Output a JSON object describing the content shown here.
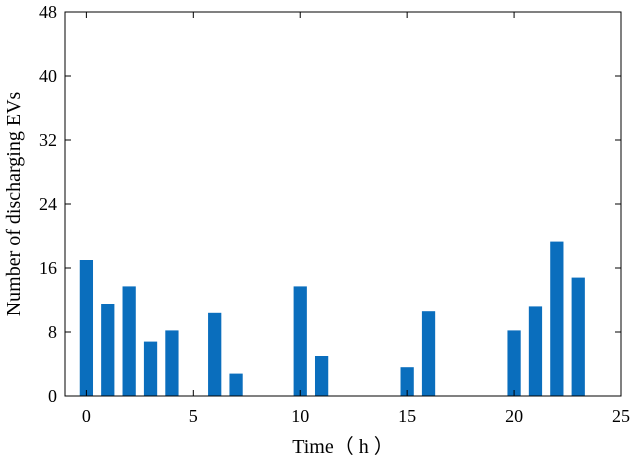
{
  "chart_data": {
    "type": "bar",
    "title": "",
    "xlabel": "Time（ h ）",
    "ylabel": "Number of discharging EVs",
    "xlim": [
      -1,
      25
    ],
    "ylim": [
      0,
      48
    ],
    "xticks": [
      0,
      5,
      10,
      15,
      20,
      25
    ],
    "yticks": [
      0,
      8,
      16,
      24,
      32,
      40,
      48
    ],
    "grid": false,
    "legend": "none",
    "bar_color": "#0a6ebd",
    "x": [
      0,
      1,
      2,
      3,
      4,
      6,
      7,
      10,
      11,
      15,
      16,
      20,
      21,
      22,
      23
    ],
    "values": [
      17,
      11.5,
      13.7,
      6.8,
      8.2,
      10.4,
      2.8,
      13.7,
      5,
      3.6,
      10.6,
      8.2,
      11.2,
      19.3,
      14.8
    ]
  }
}
